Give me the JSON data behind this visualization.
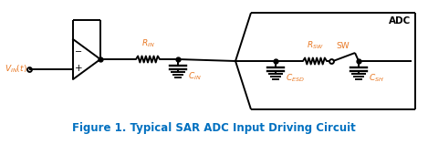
{
  "title": "Figure 1. Typical SAR ADC Input Driving Circuit",
  "title_color": "#0070C0",
  "title_fontsize": 8.5,
  "bg_color": "#ffffff",
  "line_color": "#000000",
  "label_color": "#E87722",
  "fig_width": 4.69,
  "fig_height": 1.58,
  "dpi": 100,
  "lw": 1.4
}
